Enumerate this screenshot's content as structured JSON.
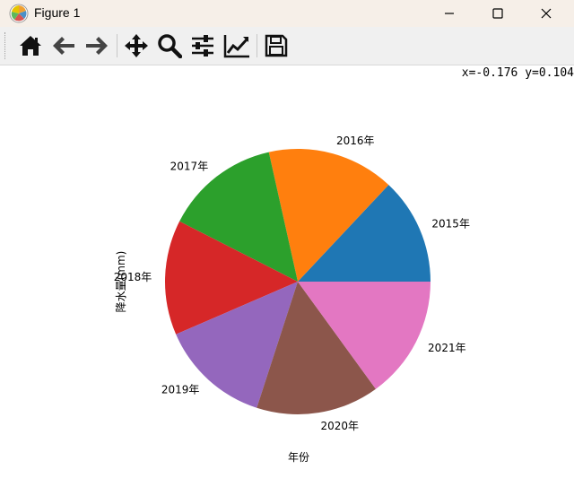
{
  "window": {
    "title": "Figure 1"
  },
  "toolbar": {
    "buttons": [
      {
        "name": "home",
        "icon": "home-icon"
      },
      {
        "name": "back",
        "icon": "arrow-left-icon"
      },
      {
        "name": "forward",
        "icon": "arrow-right-icon"
      },
      {
        "name": "pan",
        "icon": "move-icon"
      },
      {
        "name": "zoom",
        "icon": "magnifier-icon"
      },
      {
        "name": "configure-subplots",
        "icon": "sliders-icon"
      },
      {
        "name": "edit-axis",
        "icon": "line-chart-icon"
      },
      {
        "name": "save",
        "icon": "floppy-disk-icon"
      }
    ],
    "coordinates": "x=-0.176 y=0.104"
  },
  "chart_data": {
    "type": "pie",
    "xlabel": "年份",
    "ylabel": "降水量(mm)",
    "categories": [
      "2015年",
      "2016年",
      "2017年",
      "2018年",
      "2019年",
      "2020年",
      "2021年"
    ],
    "values": [
      13.0,
      15.5,
      14.0,
      14.0,
      13.5,
      15.0,
      15.0
    ],
    "colors": [
      "#1f77b4",
      "#ff7f0e",
      "#2ca02c",
      "#d62728",
      "#9467bd",
      "#8c564b",
      "#e377c2"
    ],
    "start_angle_deg": 0,
    "direction": "counterclockwise"
  }
}
